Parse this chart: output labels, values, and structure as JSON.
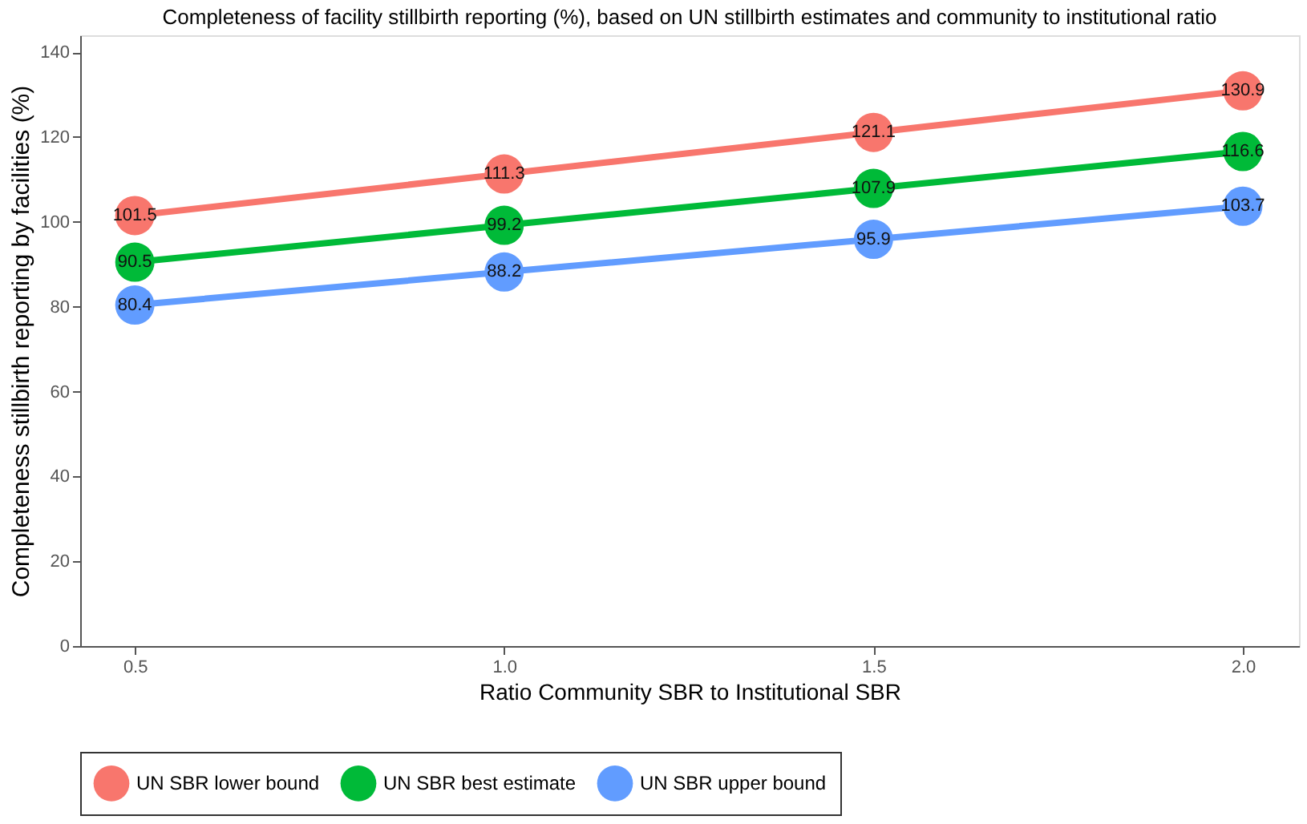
{
  "chart_data": {
    "type": "line",
    "title": "Completeness of facility stillbirth reporting (%), based on UN stillbirth estimates and community to institutional ratio",
    "xlabel": "Ratio Community SBR to Institutional SBR",
    "ylabel": "Completeness stillbirth reporting by facilities (%)",
    "x": [
      0.5,
      1.0,
      1.5,
      2.0
    ],
    "series": [
      {
        "name": "UN SBR lower bound",
        "color": "#f8766d",
        "values": [
          101.5,
          111.3,
          121.1,
          130.9
        ]
      },
      {
        "name": "UN SBR best estimate",
        "color": "#00ba38",
        "values": [
          90.5,
          99.2,
          107.9,
          116.6
        ]
      },
      {
        "name": "UN SBR upper bound",
        "color": "#619cff",
        "values": [
          80.4,
          88.2,
          95.9,
          103.7
        ]
      }
    ],
    "xlim": [
      0.426,
      2.076
    ],
    "ylim": [
      0,
      144
    ],
    "xticks": [
      0.5,
      {
        "value": 1.0,
        "label": "1.0"
      },
      1.5,
      {
        "value": 2.0,
        "label": "2.0"
      }
    ],
    "yticks": [
      0,
      20,
      40,
      60,
      80,
      100,
      120,
      140
    ],
    "data_labels": true,
    "marker": "circle",
    "line_style": "solid",
    "grid": false,
    "legend": "bottom"
  }
}
